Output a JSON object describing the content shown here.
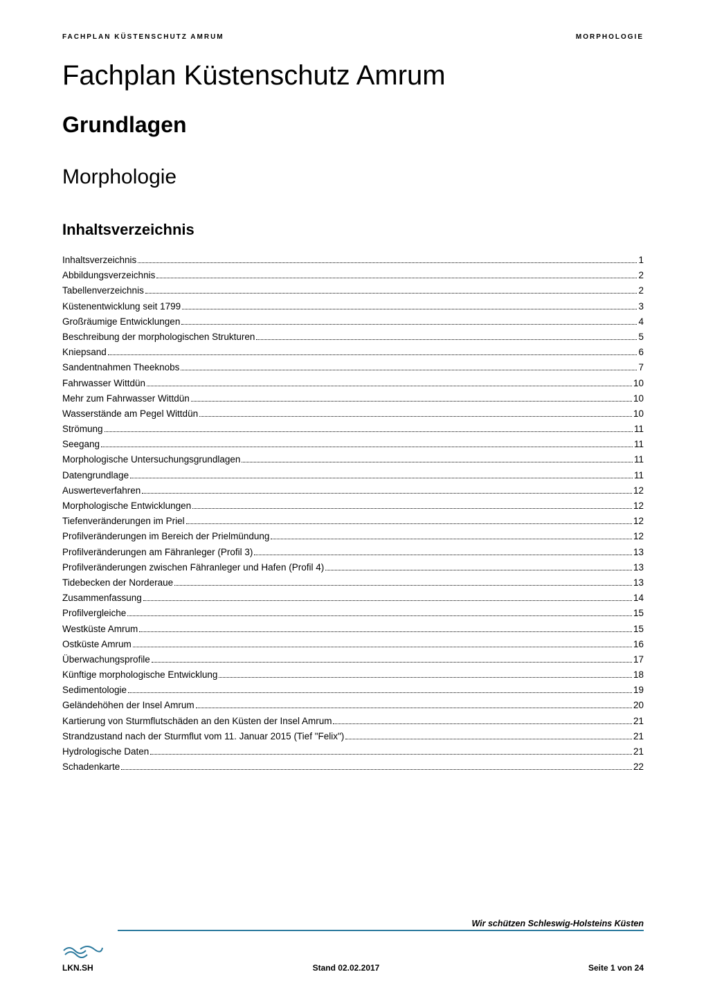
{
  "header": {
    "left": "FACHPLAN KÜSTENSCHUTZ AMRUM",
    "right": "MORPHOLOGIE"
  },
  "titles": {
    "main": "Fachplan Küstenschutz Amrum",
    "sub": "Grundlagen",
    "section": "Morphologie",
    "toc_heading": "Inhaltsverzeichnis"
  },
  "toc": [
    {
      "label": "Inhaltsverzeichnis",
      "page": "1"
    },
    {
      "label": "Abbildungsverzeichnis",
      "page": "2"
    },
    {
      "label": "Tabellenverzeichnis",
      "page": "2"
    },
    {
      "label": "Küstenentwicklung seit 1799",
      "page": "3"
    },
    {
      "label": "Großräumige Entwicklungen",
      "page": "4"
    },
    {
      "label": "Beschreibung der morphologischen Strukturen",
      "page": "5"
    },
    {
      "label": "Kniepsand",
      "page": "6"
    },
    {
      "label": "Sandentnahmen Theeknobs",
      "page": "7"
    },
    {
      "label": "Fahrwasser Wittdün",
      "page": "10"
    },
    {
      "label": "Mehr zum Fahrwasser Wittdün",
      "page": "10"
    },
    {
      "label": "Wasserstände am Pegel Wittdün",
      "page": "10"
    },
    {
      "label": "Strömung",
      "page": "11"
    },
    {
      "label": "Seegang",
      "page": "11"
    },
    {
      "label": "Morphologische Untersuchungsgrundlagen",
      "page": "11"
    },
    {
      "label": "Datengrundlage",
      "page": "11"
    },
    {
      "label": "Auswerteverfahren",
      "page": "12"
    },
    {
      "label": "Morphologische Entwicklungen",
      "page": "12"
    },
    {
      "label": "Tiefenveränderungen im Priel",
      "page": "12"
    },
    {
      "label": "Profilveränderungen im Bereich der Prielmündung",
      "page": "12"
    },
    {
      "label": "Profilveränderungen am Fähranleger (Profil 3)",
      "page": "13"
    },
    {
      "label": "Profilveränderungen zwischen Fähranleger und Hafen (Profil 4)",
      "page": "13"
    },
    {
      "label": "Tidebecken der Norderaue",
      "page": "13"
    },
    {
      "label": "Zusammenfassung",
      "page": "14"
    },
    {
      "label": "Profilvergleiche",
      "page": "15"
    },
    {
      "label": "Westküste Amrum",
      "page": "15"
    },
    {
      "label": "Ostküste Amrum",
      "page": "16"
    },
    {
      "label": "Überwachungsprofile",
      "page": "17"
    },
    {
      "label": "Künftige morphologische Entwicklung",
      "page": "18"
    },
    {
      "label": "Sedimentologie",
      "page": "19"
    },
    {
      "label": "Geländehöhen der Insel Amrum",
      "page": "20"
    },
    {
      "label": "Kartierung von Sturmflutschäden an den Küsten der Insel Amrum",
      "page": "21"
    },
    {
      "label": "Strandzustand nach der Sturmflut vom 11. Januar 2015 (Tief \"Felix\")",
      "page": "21"
    },
    {
      "label": "Hydrologische Daten",
      "page": "21"
    },
    {
      "label": "Schadenkarte",
      "page": "22"
    }
  ],
  "footer": {
    "slogan": "Wir schützen Schleswig-Holsteins Küsten",
    "org": "LKN.SH",
    "date_label": "Stand 02.02.2017",
    "page_label": "Seite 1 von 24",
    "rule_color": "#2c7a9e",
    "wave_color": "#2c7a9e"
  },
  "style": {
    "background_color": "#ffffff",
    "text_color": "#000000",
    "title_fontsize": 40,
    "subtitle_fontsize": 32,
    "section_fontsize": 30,
    "toc_heading_fontsize": 22,
    "toc_fontsize": 13.5,
    "header_fontsize": 10,
    "footer_fontsize": 12
  }
}
